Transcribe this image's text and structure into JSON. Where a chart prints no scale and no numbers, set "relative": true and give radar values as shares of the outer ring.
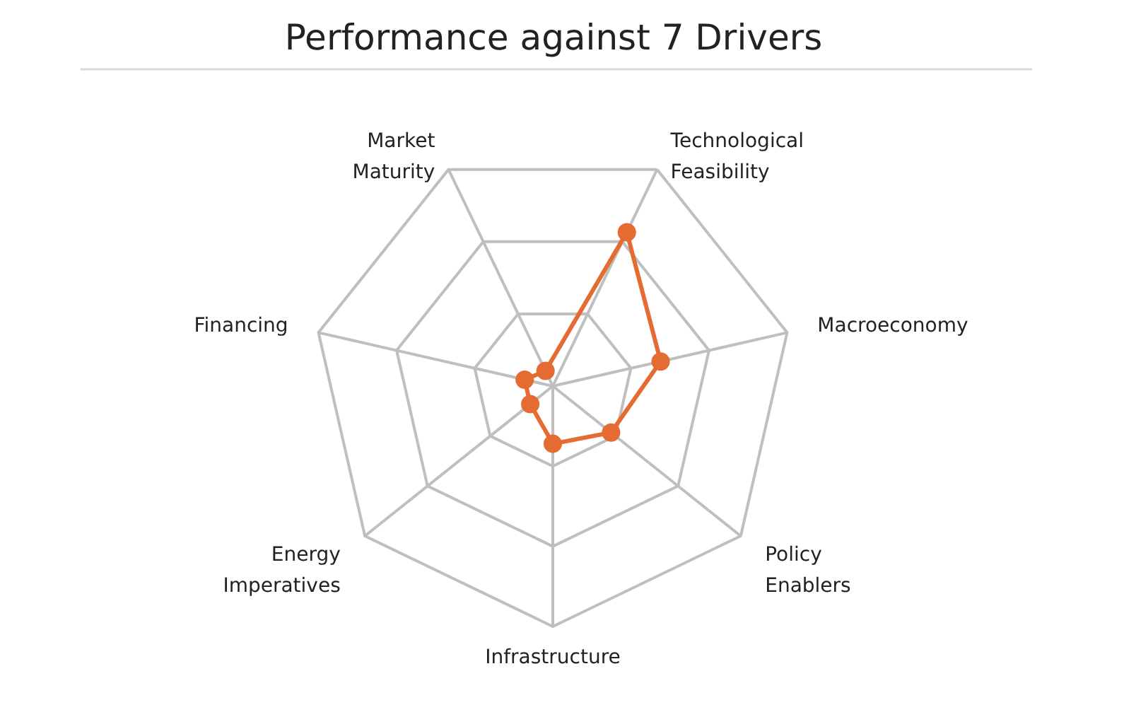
{
  "chart_data": {
    "type": "radar",
    "title": "Performance against 7 Drivers",
    "categories": [
      "Technological Feasibility",
      "Macroeconomy",
      "Policy Enablers",
      "Infrastructure",
      "Energy Imperatives",
      "Financing",
      "Market Maturity"
    ],
    "relative": true,
    "grid": true,
    "marker": "circle",
    "line_style": "solid",
    "series": [
      {
        "color": "#e46c33",
        "values": [
          0.71,
          0.46,
          0.31,
          0.24,
          0.12,
          0.12,
          0.07
        ]
      }
    ]
  }
}
